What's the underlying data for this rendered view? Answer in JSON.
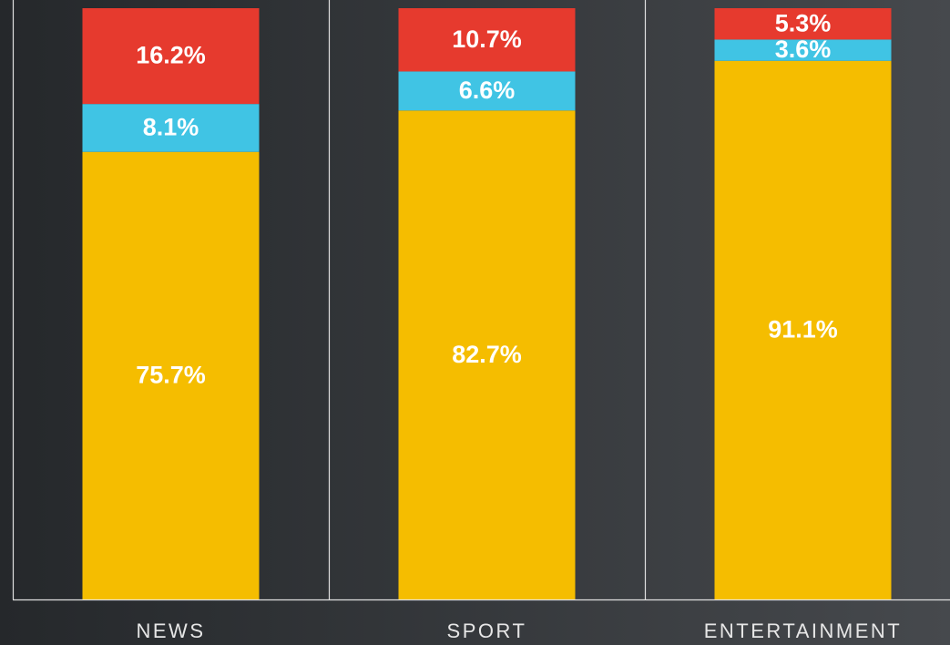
{
  "chart_data": {
    "type": "stacked_bar",
    "categories": [
      "NEWS",
      "SPORT",
      "ENTERTAINMENT"
    ],
    "ylim": [
      0,
      100
    ],
    "series": [
      {
        "color": "#f5bd00",
        "values": [
          75.7,
          82.7,
          91.1
        ],
        "value_labels": [
          "75.7%",
          "82.7%",
          "91.1%"
        ]
      },
      {
        "color": "#40c4e4",
        "values": [
          8.1,
          6.6,
          3.6
        ],
        "value_labels": [
          "8.1%",
          "6.6%",
          "3.6%"
        ]
      },
      {
        "color": "#e63a2e",
        "values": [
          16.2,
          10.7,
          5.3
        ],
        "value_labels": [
          "16.2%",
          "10.7%",
          "5.3%"
        ]
      }
    ]
  }
}
